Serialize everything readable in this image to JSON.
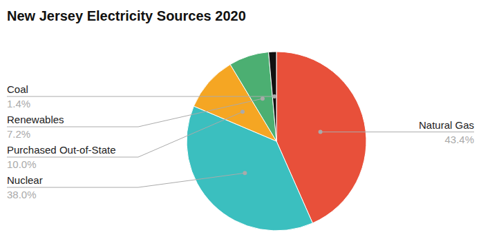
{
  "chart_data": {
    "type": "pie",
    "title": "New Jersey Electricity Sources 2020",
    "categories": [
      "Natural Gas",
      "Nuclear",
      "Purchased Out-of-State",
      "Renewables",
      "Coal"
    ],
    "values": [
      43.4,
      38.0,
      10.0,
      7.2,
      1.4
    ],
    "value_labels": [
      "43.4%",
      "38.0%",
      "10.0%",
      "7.2%",
      "1.4%"
    ],
    "colors": [
      "#E8503A",
      "#3BBFBF",
      "#F5A623",
      "#4CAF72",
      "#111111"
    ],
    "data_labels": true
  }
}
